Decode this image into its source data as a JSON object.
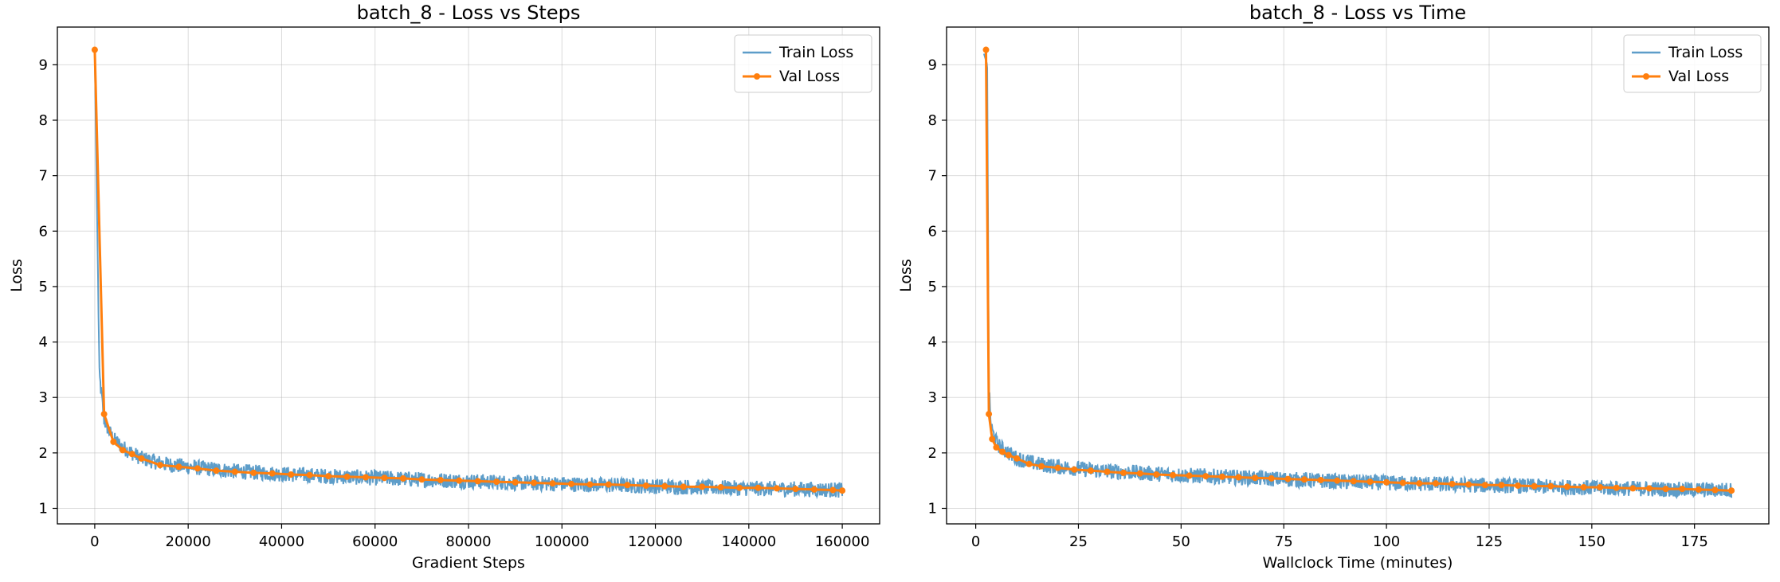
{
  "colors": {
    "train": "#1f77b4",
    "val": "#ff7f0e",
    "grid": "#b0b0b0",
    "axes": "#000000"
  },
  "chart_data": [
    {
      "type": "line",
      "title": "batch_8 - Loss vs Steps",
      "xlabel": "Gradient Steps",
      "ylabel": "Loss",
      "xlim": [
        -8000,
        168000
      ],
      "ylim": [
        0.72,
        9.68
      ],
      "xticks": [
        0,
        20000,
        40000,
        60000,
        80000,
        100000,
        120000,
        140000,
        160000
      ],
      "xtick_labels": [
        "0",
        "20000",
        "40000",
        "60000",
        "80000",
        "100000",
        "120000",
        "140000",
        "160000"
      ],
      "yticks": [
        1,
        2,
        3,
        4,
        5,
        6,
        7,
        8,
        9
      ],
      "ytick_labels": [
        "1",
        "2",
        "3",
        "4",
        "5",
        "6",
        "7",
        "8",
        "9"
      ],
      "grid": true,
      "legend": "top-right",
      "series": [
        {
          "name": "Train Loss",
          "style": "line-noisy",
          "x": [
            0,
            1000,
            2000,
            3000,
            4000,
            6000,
            8000,
            10000,
            15000,
            20000,
            30000,
            40000,
            50000,
            60000,
            70000,
            80000,
            90000,
            100000,
            110000,
            120000,
            130000,
            140000,
            150000,
            160000
          ],
          "y": [
            9.2,
            3.4,
            2.6,
            2.4,
            2.25,
            2.1,
            2.0,
            1.9,
            1.8,
            1.75,
            1.67,
            1.62,
            1.58,
            1.55,
            1.52,
            1.49,
            1.46,
            1.44,
            1.42,
            1.4,
            1.38,
            1.36,
            1.35,
            1.33
          ],
          "noise_amplitude": 0.14
        },
        {
          "name": "Val Loss",
          "style": "line-markers",
          "x": [
            0,
            2000,
            4000,
            6000,
            8000,
            10000,
            14000,
            18000,
            22000,
            26000,
            30000,
            34000,
            38000,
            42000,
            46000,
            50000,
            54000,
            58000,
            62000,
            66000,
            70000,
            74000,
            78000,
            82000,
            86000,
            90000,
            94000,
            98000,
            102000,
            106000,
            110000,
            114000,
            118000,
            122000,
            126000,
            130000,
            134000,
            138000,
            142000,
            146000,
            150000,
            154000,
            158000,
            160000
          ],
          "y": [
            9.27,
            2.7,
            2.2,
            2.05,
            1.98,
            1.9,
            1.78,
            1.75,
            1.72,
            1.68,
            1.66,
            1.64,
            1.63,
            1.61,
            1.6,
            1.58,
            1.57,
            1.56,
            1.55,
            1.54,
            1.52,
            1.51,
            1.5,
            1.49,
            1.48,
            1.47,
            1.46,
            1.45,
            1.44,
            1.43,
            1.43,
            1.42,
            1.41,
            1.4,
            1.39,
            1.39,
            1.38,
            1.37,
            1.37,
            1.36,
            1.35,
            1.34,
            1.33,
            1.32
          ]
        }
      ]
    },
    {
      "type": "line",
      "title": "batch_8 - Loss vs Time",
      "xlabel": "Wallclock Time (minutes)",
      "ylabel": "Loss",
      "xlim": [
        -7.1,
        193.1
      ],
      "ylim": [
        0.72,
        9.68
      ],
      "xticks": [
        0,
        25,
        50,
        75,
        100,
        125,
        150,
        175
      ],
      "xtick_labels": [
        "0",
        "25",
        "50",
        "75",
        "100",
        "125",
        "150",
        "175"
      ],
      "yticks": [
        1,
        2,
        3,
        4,
        5,
        6,
        7,
        8,
        9
      ],
      "ytick_labels": [
        "1",
        "2",
        "3",
        "4",
        "5",
        "6",
        "7",
        "8",
        "9"
      ],
      "grid": true,
      "legend": "top-right",
      "series": [
        {
          "name": "Train Loss",
          "style": "line-noisy",
          "x": [
            2,
            2.8,
            3.2,
            3.6,
            4,
            5,
            6,
            8,
            10,
            15,
            20,
            30,
            40,
            50,
            60,
            70,
            80,
            90,
            100,
            110,
            120,
            130,
            140,
            150,
            160,
            170,
            184
          ],
          "y": [
            9.2,
            9.0,
            3.2,
            2.6,
            2.4,
            2.2,
            2.1,
            2.0,
            1.9,
            1.8,
            1.75,
            1.68,
            1.64,
            1.6,
            1.57,
            1.54,
            1.51,
            1.48,
            1.46,
            1.44,
            1.42,
            1.41,
            1.39,
            1.37,
            1.36,
            1.34,
            1.33
          ],
          "noise_amplitude": 0.14
        },
        {
          "name": "Val Loss",
          "style": "line-markers",
          "x": [
            2.5,
            3.2,
            4,
            5,
            6.5,
            8,
            10,
            13,
            16,
            20,
            24,
            28,
            32,
            36,
            40,
            44,
            48,
            52,
            56,
            60,
            64,
            68,
            72,
            76,
            80,
            84,
            88,
            92,
            96,
            100,
            104,
            108,
            112,
            116,
            120,
            124,
            128,
            132,
            136,
            140,
            144,
            148,
            152,
            156,
            160,
            164,
            168,
            172,
            176,
            180,
            184
          ],
          "y": [
            9.27,
            2.7,
            2.25,
            2.1,
            2.02,
            1.96,
            1.9,
            1.8,
            1.76,
            1.73,
            1.7,
            1.68,
            1.66,
            1.64,
            1.63,
            1.61,
            1.6,
            1.59,
            1.58,
            1.57,
            1.56,
            1.55,
            1.54,
            1.53,
            1.52,
            1.51,
            1.5,
            1.49,
            1.48,
            1.47,
            1.46,
            1.45,
            1.45,
            1.44,
            1.43,
            1.42,
            1.42,
            1.41,
            1.4,
            1.4,
            1.39,
            1.38,
            1.38,
            1.37,
            1.36,
            1.36,
            1.35,
            1.35,
            1.34,
            1.33,
            1.32
          ]
        }
      ]
    }
  ]
}
